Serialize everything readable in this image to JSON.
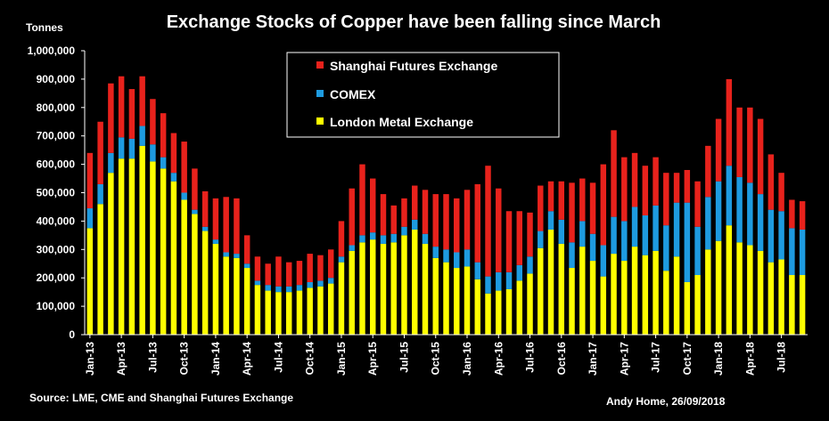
{
  "chart_data": {
    "type": "bar",
    "stacked": true,
    "title": "Exchange Stocks of Copper have been falling since March",
    "ylabel": "Tonnes",
    "ylim": [
      0,
      1000000
    ],
    "y_ticks": [
      "0",
      "100,000",
      "200,000",
      "300,000",
      "400,000",
      "500,000",
      "600,000",
      "700,000",
      "800,000",
      "900,000",
      "1,000,000"
    ],
    "x_tick_labels": [
      "Jan-13",
      "Apr-13",
      "Jul-13",
      "Oct-13",
      "Jan-14",
      "Apr-14",
      "Jul-14",
      "Oct-14",
      "Jan-15",
      "Apr-15",
      "Jul-15",
      "Oct-15",
      "Jan-16",
      "Apr-16",
      "Jul-16",
      "Oct-16",
      "Jan-17",
      "Apr-17",
      "Jul-17",
      "Oct-17",
      "Jan-18",
      "Apr-18",
      "Jul-18"
    ],
    "categories": [
      "Jan-13",
      "Feb-13",
      "Mar-13",
      "Apr-13",
      "May-13",
      "Jun-13",
      "Jul-13",
      "Aug-13",
      "Sep-13",
      "Oct-13",
      "Nov-13",
      "Dec-13",
      "Jan-14",
      "Feb-14",
      "Mar-14",
      "Apr-14",
      "May-14",
      "Jun-14",
      "Jul-14",
      "Aug-14",
      "Sep-14",
      "Oct-14",
      "Nov-14",
      "Dec-14",
      "Jan-15",
      "Feb-15",
      "Mar-15",
      "Apr-15",
      "May-15",
      "Jun-15",
      "Jul-15",
      "Aug-15",
      "Sep-15",
      "Oct-15",
      "Nov-15",
      "Dec-15",
      "Jan-16",
      "Feb-16",
      "Mar-16",
      "Apr-16",
      "May-16",
      "Jun-16",
      "Jul-16",
      "Aug-16",
      "Sep-16",
      "Oct-16",
      "Nov-16",
      "Dec-16",
      "Jan-17",
      "Feb-17",
      "Mar-17",
      "Apr-17",
      "May-17",
      "Jun-17",
      "Jul-17",
      "Aug-17",
      "Sep-17",
      "Oct-17",
      "Nov-17",
      "Dec-17",
      "Jan-18",
      "Feb-18",
      "Mar-18",
      "Apr-18",
      "May-18",
      "Jun-18",
      "Jul-18",
      "Aug-18",
      "Sep-18"
    ],
    "series": [
      {
        "name": "London Metal Exchange",
        "color": "#FFFF00",
        "values": [
          375000,
          460000,
          570000,
          620000,
          620000,
          665000,
          610000,
          585000,
          540000,
          475000,
          425000,
          365000,
          320000,
          275000,
          270000,
          235000,
          175000,
          155000,
          150000,
          150000,
          155000,
          165000,
          170000,
          180000,
          255000,
          295000,
          325000,
          335000,
          320000,
          325000,
          350000,
          370000,
          320000,
          270000,
          255000,
          235000,
          240000,
          195000,
          145000,
          155000,
          160000,
          190000,
          215000,
          305000,
          370000,
          320000,
          235000,
          310000,
          260000,
          205000,
          285000,
          260000,
          310000,
          280000,
          295000,
          225000,
          275000,
          185000,
          210000,
          300000,
          330000,
          385000,
          325000,
          315000,
          295000,
          255000,
          265000,
          210000,
          210000
        ]
      },
      {
        "name": "COMEX",
        "color": "#1E9BE0",
        "values": [
          70000,
          70000,
          70000,
          75000,
          70000,
          70000,
          60000,
          40000,
          30000,
          25000,
          15000,
          15000,
          15000,
          15000,
          15000,
          15000,
          15000,
          20000,
          20000,
          20000,
          20000,
          20000,
          20000,
          20000,
          20000,
          20000,
          25000,
          25000,
          30000,
          30000,
          30000,
          35000,
          35000,
          40000,
          45000,
          55000,
          60000,
          60000,
          60000,
          65000,
          60000,
          55000,
          60000,
          60000,
          65000,
          85000,
          90000,
          90000,
          95000,
          110000,
          130000,
          140000,
          140000,
          140000,
          160000,
          160000,
          190000,
          280000,
          170000,
          185000,
          210000,
          210000,
          230000,
          220000,
          200000,
          185000,
          170000,
          165000,
          160000
        ]
      },
      {
        "name": "Shanghai Futures Exchange",
        "color": "#E8221C",
        "values": [
          195000,
          220000,
          245000,
          215000,
          175000,
          175000,
          160000,
          155000,
          140000,
          180000,
          145000,
          125000,
          145000,
          195000,
          195000,
          100000,
          85000,
          75000,
          105000,
          85000,
          85000,
          100000,
          90000,
          100000,
          125000,
          200000,
          250000,
          190000,
          145000,
          100000,
          100000,
          120000,
          155000,
          185000,
          195000,
          190000,
          210000,
          275000,
          390000,
          295000,
          215000,
          190000,
          155000,
          160000,
          105000,
          135000,
          210000,
          150000,
          180000,
          285000,
          305000,
          225000,
          190000,
          175000,
          170000,
          185000,
          105000,
          115000,
          160000,
          180000,
          220000,
          305000,
          245000,
          265000,
          265000,
          195000,
          135000,
          100000,
          100000
        ]
      }
    ],
    "legend_position": "top-center",
    "grid": false
  },
  "source_note": "Source: LME, CME and Shanghai Futures Exchange",
  "author_note": "Andy Home, 26/09/2018"
}
